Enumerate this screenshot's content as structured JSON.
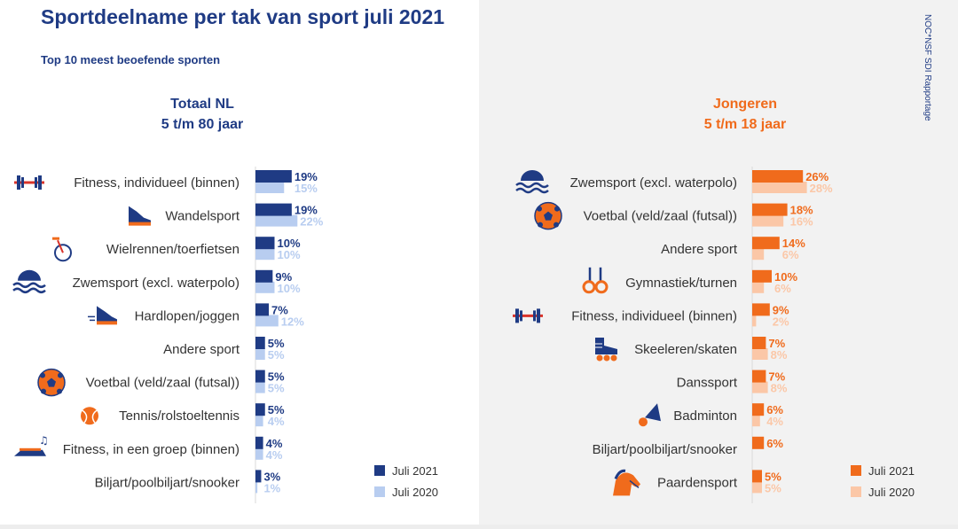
{
  "title": "Sportdeelname per tak van sport juli 2021",
  "subtitle": "Top 10 meest beoefende sporten",
  "source": "NOC*NSF SDI Rapportage",
  "chart_data": [
    {
      "type": "bar",
      "orientation": "horizontal",
      "title_line1": "Totaal NL",
      "title_line2": "5 t/m 80 jaar",
      "categories": [
        "Fitness, individueel (binnen)",
        "Wandelsport",
        "Wielrennen/toerfietsen",
        "Zwemsport (excl. waterpolo)",
        "Hardlopen/joggen",
        "Andere sport",
        "Voetbal (veld/zaal (futsal))",
        "Tennis/rolstoeltennis",
        "Fitness, in een groep (binnen)",
        "Biljart/poolbiljart/snooker"
      ],
      "icons": [
        "dumbbell-icon",
        "shoe-icon",
        "bicycle-icon",
        "swimmer-icon",
        "running-shoe-icon",
        "",
        "football-icon",
        "tennis-ball-icon",
        "step-aerobics-icon",
        ""
      ],
      "series": [
        {
          "name": "Juli 2021",
          "values": [
            19,
            19,
            10,
            9,
            7,
            5,
            5,
            5,
            4,
            3
          ],
          "labels": [
            "19%",
            "19%",
            "10%",
            "9%",
            "7%",
            "5%",
            "5%",
            "5%",
            "4%",
            "3%"
          ],
          "color": "#1f3b84"
        },
        {
          "name": "Juli 2020",
          "values": [
            15,
            22,
            10,
            10,
            12,
            5,
            5,
            4,
            4,
            1
          ],
          "labels": [
            "15%",
            "22%",
            "10%",
            "10%",
            "12%",
            "5%",
            "5%",
            "4%",
            "4%",
            "1%"
          ],
          "color": "#b8cdf0"
        }
      ],
      "xlim": [
        0,
        30
      ],
      "legend_position": "bottom-right"
    },
    {
      "type": "bar",
      "orientation": "horizontal",
      "title_line1": "Jongeren",
      "title_line2": "5 t/m 18 jaar",
      "categories": [
        "Zwemsport (excl. waterpolo)",
        "Voetbal (veld/zaal (futsal))",
        "Andere sport",
        "Gymnastiek/turnen",
        "Fitness, individueel (binnen)",
        "Skeeleren/skaten",
        "Danssport",
        "Badminton",
        "Biljart/poolbiljart/snooker",
        "Paardensport"
      ],
      "icons": [
        "swimmer-icon",
        "football-icon",
        "",
        "rings-icon",
        "dumbbell-icon",
        "skate-icon",
        "",
        "shuttlecock-icon",
        "",
        "horse-icon"
      ],
      "series": [
        {
          "name": "Juli 2021",
          "values": [
            26,
            18,
            14,
            10,
            9,
            7,
            7,
            6,
            6,
            5
          ],
          "labels": [
            "26%",
            "18%",
            "14%",
            "10%",
            "9%",
            "7%",
            "7%",
            "6%",
            "6%",
            "5%"
          ],
          "color": "#f06b1c"
        },
        {
          "name": "Juli 2020",
          "values": [
            28,
            16,
            6,
            6,
            2,
            8,
            8,
            4,
            0,
            5
          ],
          "labels": [
            "28%",
            "16%",
            "6%",
            "6%",
            "2%",
            "8%",
            "8%",
            "4%",
            "",
            "5%"
          ],
          "color": "#fbc7a7"
        }
      ],
      "xlim": [
        0,
        40
      ],
      "legend_position": "bottom-right"
    }
  ]
}
